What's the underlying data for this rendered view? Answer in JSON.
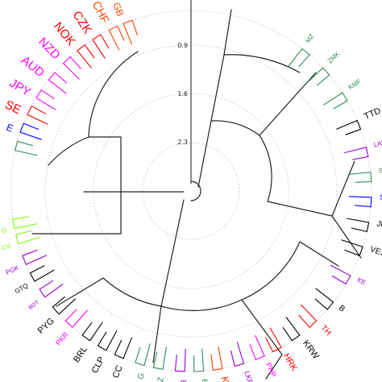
{
  "scale_labels": [
    "0.9",
    "1.6",
    "2.3"
  ],
  "leaves": [
    {
      "label": "GB",
      "color": "#ff4500"
    },
    {
      "label": "CHF",
      "color": "#ff4500"
    },
    {
      "label": "CZK",
      "color": "#ff0000"
    },
    {
      "label": "NOK",
      "color": "#ff0000"
    },
    {
      "label": "NZD",
      "color": "#ff00ff"
    },
    {
      "label": "AUD",
      "color": "#ff00ff"
    },
    {
      "label": "JPY",
      "color": "#ff00ff"
    },
    {
      "label": "SE",
      "color": "#ff0000"
    },
    {
      "label": "E",
      "color": "#0000ff"
    },
    {
      "label": "",
      "color": "#2e8b57"
    },
    {
      "label": "G",
      "color": "#7cfc00"
    },
    {
      "label": "CV",
      "color": "#7cfc00"
    },
    {
      "label": "PGK",
      "color": "#9400d3"
    },
    {
      "label": "GTQ",
      "color": "#000000"
    },
    {
      "label": "BDT",
      "color": "#9400d3"
    },
    {
      "label": "PYG",
      "color": "#000000"
    },
    {
      "label": "PKR",
      "color": "#ff00ff"
    },
    {
      "label": "BRL",
      "color": "#000000"
    },
    {
      "label": "CLP",
      "color": "#000000"
    },
    {
      "label": "CC",
      "color": "#000000"
    },
    {
      "label": "G",
      "color": "#2e8b57"
    },
    {
      "label": "DZ",
      "color": "#2e8b57"
    },
    {
      "label": "IDR",
      "color": "#9400d3"
    },
    {
      "label": "EGP",
      "color": "#2e8b57"
    },
    {
      "label": "KZT",
      "color": "#ff4500"
    },
    {
      "label": "LKR",
      "color": "#9400d3"
    },
    {
      "label": "PHP",
      "color": "#ff00ff"
    },
    {
      "label": "HRK",
      "color": "#ff0000"
    },
    {
      "label": "KRW",
      "color": "#000000"
    },
    {
      "label": "TH",
      "color": "#ff0000"
    },
    {
      "label": "B",
      "color": "#000000"
    },
    {
      "label": "KE",
      "color": "#9400d3"
    },
    {
      "label": "VES",
      "color": "#000000"
    },
    {
      "label": "JMD",
      "color": "#000000"
    },
    {
      "label": "SYP",
      "color": "#0000ff"
    },
    {
      "label": "STD",
      "color": "#2e8b57"
    },
    {
      "label": "LAK",
      "color": "#9400d3"
    },
    {
      "label": "TTD",
      "color": "#000000"
    },
    {
      "label": "KMF",
      "color": "#2e8b57"
    },
    {
      "label": "ZMK",
      "color": "#2e8b57"
    },
    {
      "label": "MZ",
      "color": "#2e8b57"
    }
  ]
}
